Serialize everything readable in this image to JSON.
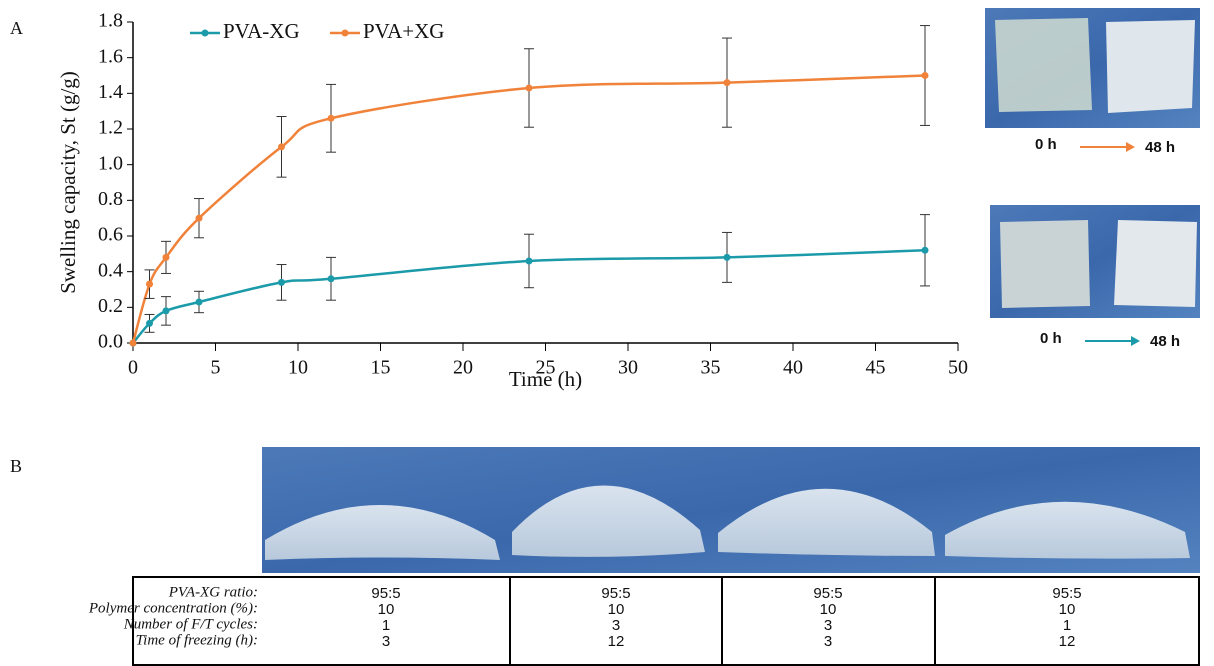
{
  "chart_data": {
    "type": "line",
    "x": [
      0,
      1,
      2,
      4,
      9,
      12,
      24,
      36,
      48
    ],
    "series": [
      {
        "name": "PVA-XG",
        "color": "#1b9aaa",
        "values": [
          0,
          0.11,
          0.18,
          0.23,
          0.34,
          0.36,
          0.46,
          0.48,
          0.52
        ],
        "errors": [
          0,
          0.05,
          0.08,
          0.06,
          0.1,
          0.12,
          0.15,
          0.14,
          0.2
        ]
      },
      {
        "name": "PVA+XG",
        "color": "#f0823a",
        "values": [
          0,
          0.33,
          0.48,
          0.7,
          1.1,
          1.26,
          1.43,
          1.46,
          1.5
        ],
        "errors": [
          0,
          0.08,
          0.09,
          0.11,
          0.17,
          0.19,
          0.22,
          0.25,
          0.28
        ]
      }
    ],
    "x_label": "Time (h)",
    "y_label": "Swelling capacity, St (g/g)",
    "xlim": [
      0,
      50
    ],
    "xticks": [
      0,
      5,
      10,
      15,
      20,
      25,
      30,
      35,
      40,
      45,
      50
    ],
    "ylim": [
      0,
      1.8
    ],
    "yticks": [
      {
        "value": 0,
        "label": "0.0"
      },
      0.2,
      0.4,
      0.6,
      0.8,
      {
        "value": 1,
        "label": "1.0"
      },
      1.2,
      1.4,
      1.6,
      1.8
    ],
    "grid": false,
    "legend": "top"
  },
  "panel_labels": [
    "A",
    "B"
  ],
  "photos": [
    {
      "before": "0 h",
      "after": "48 h",
      "color": "#f0823a"
    },
    {
      "before": "0 h",
      "after": "48 h",
      "color": "#1b9aaa"
    }
  ],
  "table": {
    "row_labels": [
      "PVA-XG ratio:",
      "Polymer concentration (%):",
      "Number of F/T cycles:",
      "Time of freezing (h):"
    ],
    "columns": [
      [
        "95:5",
        "10",
        "1",
        "3"
      ],
      [
        "95:5",
        "10",
        "3",
        "12"
      ],
      [
        "95:5",
        "10",
        "3",
        "3"
      ],
      [
        "95:5",
        "10",
        "1",
        "12"
      ]
    ]
  }
}
